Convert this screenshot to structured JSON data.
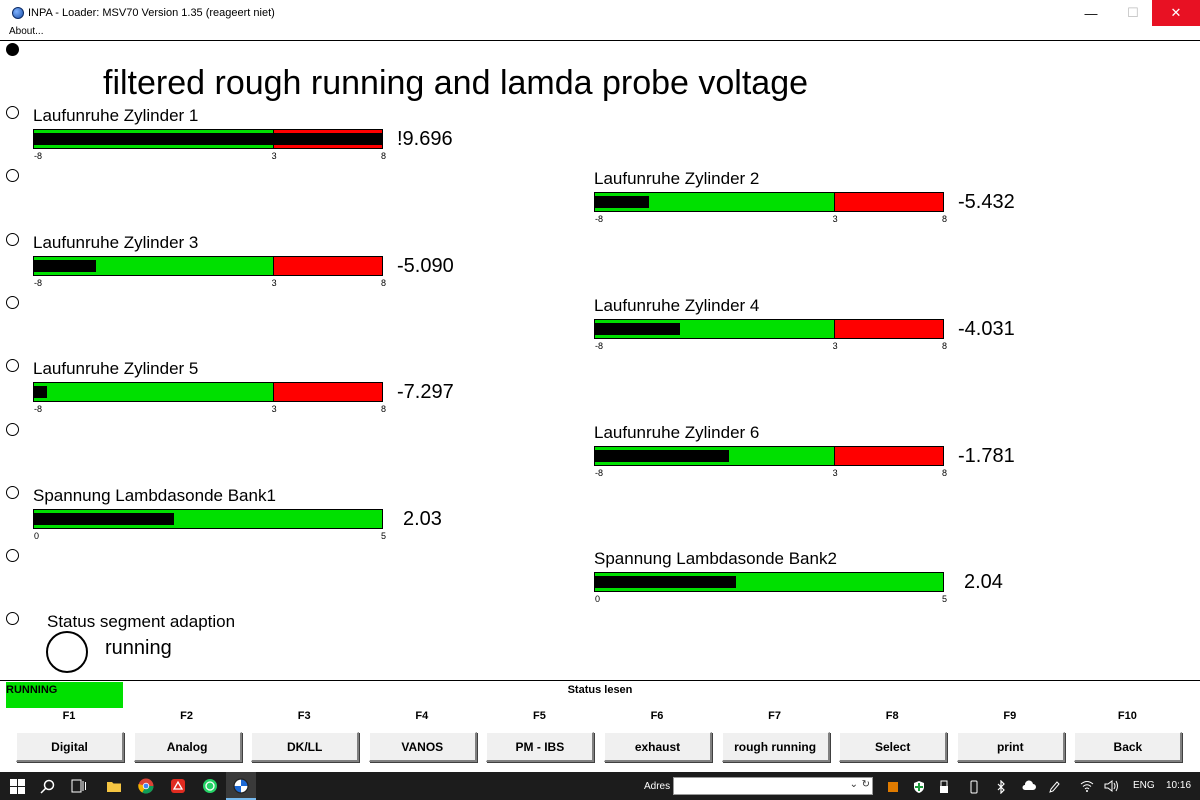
{
  "window": {
    "title": "INPA - Loader:  MSV70 Version 1.35 (reageert niet)",
    "minimize_glyph": "—",
    "maximize_glyph": "☐",
    "close_glyph": "✕"
  },
  "menu": {
    "about": "About..."
  },
  "page_title": "filtered rough running and lamda probe voltage",
  "gauges": [
    {
      "label": "Laufunruhe Zylinder 1",
      "value_text": "!9.696",
      "value": 9.696,
      "min": -8,
      "max": 8,
      "split": 3,
      "ticks": [
        "-8",
        "3",
        "8"
      ]
    },
    {
      "label": "Laufunruhe Zylinder 2",
      "value_text": "-5.432",
      "value": -5.432,
      "min": -8,
      "max": 8,
      "split": 3,
      "ticks": [
        "-8",
        "3",
        "8"
      ]
    },
    {
      "label": "Laufunruhe Zylinder 3",
      "value_text": "-5.090",
      "value": -5.09,
      "min": -8,
      "max": 8,
      "split": 3,
      "ticks": [
        "-8",
        "3",
        "8"
      ]
    },
    {
      "label": "Laufunruhe Zylinder 4",
      "value_text": "-4.031",
      "value": -4.031,
      "min": -8,
      "max": 8,
      "split": 3,
      "ticks": [
        "-8",
        "3",
        "8"
      ]
    },
    {
      "label": "Laufunruhe Zylinder 5",
      "value_text": "-7.297",
      "value": -7.297,
      "min": -8,
      "max": 8,
      "split": 3,
      "ticks": [
        "-8",
        "3",
        "8"
      ]
    },
    {
      "label": "Laufunruhe Zylinder 6",
      "value_text": "-1.781",
      "value": -1.781,
      "min": -8,
      "max": 8,
      "split": 3,
      "ticks": [
        "-8",
        "3",
        "8"
      ]
    },
    {
      "label": "Spannung Lambdasonde Bank1",
      "value_text": "2.03",
      "value": 2.03,
      "min": 0,
      "max": 5,
      "split": null,
      "ticks": [
        "0",
        "5"
      ]
    },
    {
      "label": "Spannung Lambdasonde Bank2",
      "value_text": "2.04",
      "value": 2.04,
      "min": 0,
      "max": 5,
      "split": null,
      "ticks": [
        "0",
        "5"
      ]
    }
  ],
  "status": {
    "label": "Status segment adaption",
    "value": "running"
  },
  "bottom": {
    "running_label": "RUNNING",
    "status_lesen": "Status lesen",
    "fkeys": [
      "F1",
      "F2",
      "F3",
      "F4",
      "F5",
      "F6",
      "F7",
      "F8",
      "F9",
      "F10"
    ],
    "buttons": [
      "Digital",
      "Analog",
      "DK/LL",
      "VANOS",
      "PM - IBS",
      "exhaust",
      "rough running",
      "Select",
      "print",
      "Back"
    ]
  },
  "taskbar": {
    "adres_label": "Adres",
    "language": "ENG",
    "time": "10:16",
    "icons": [
      "windows-start-icon",
      "search-icon",
      "task-view-icon",
      "file-explorer-icon",
      "chrome-icon",
      "pdf-reader-icon",
      "whatsapp-icon",
      "inpa-icon"
    ]
  },
  "colors": {
    "green": "#00e000",
    "red": "#ff0000",
    "fill": "#000000",
    "close_red": "#e81123"
  }
}
